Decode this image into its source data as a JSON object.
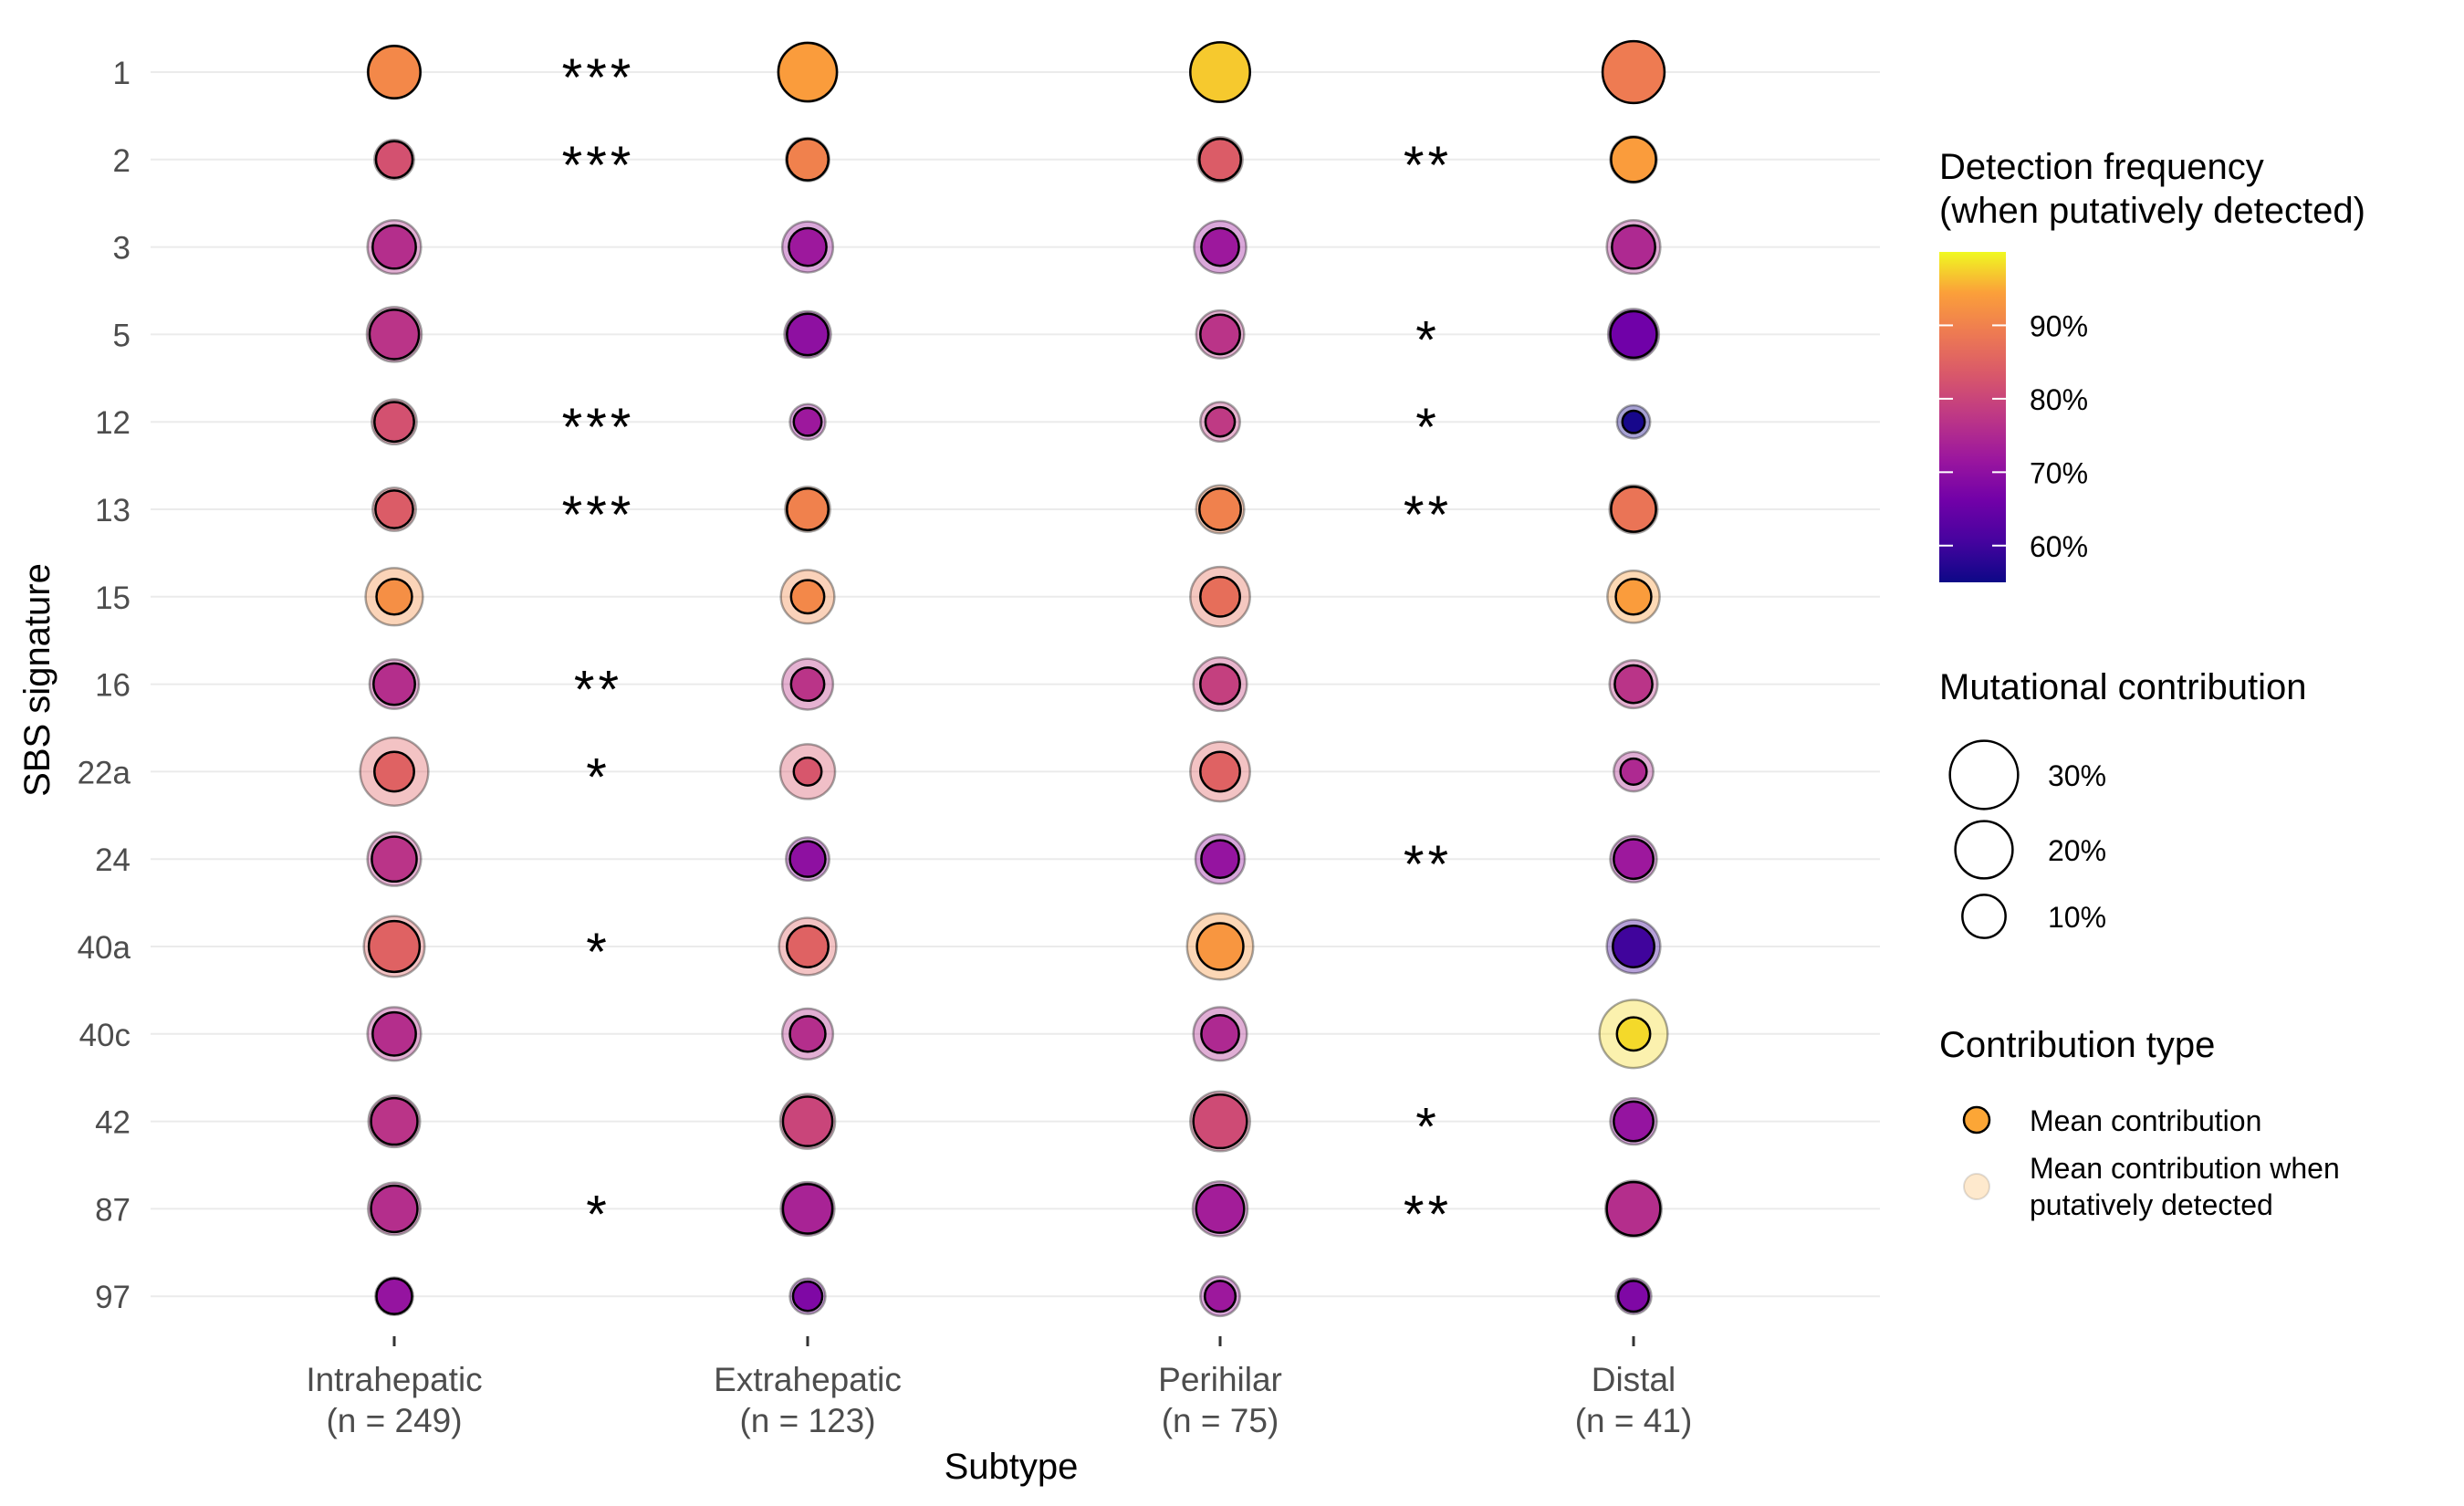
{
  "chart_data": {
    "type": "scatter",
    "xlabel": "Subtype",
    "ylabel": "SBS signature",
    "grid": true,
    "legend_position": "right",
    "categories": [
      "Intrahepatic\n(n = 249)",
      "Extrahepatic\n(n = 123)",
      "Perihilar\n(n = 75)",
      "Distal\n(n = 41)"
    ],
    "signatures": [
      "1",
      "2",
      "3",
      "5",
      "12",
      "13",
      "15",
      "16",
      "22a",
      "24",
      "40a",
      "40c",
      "42",
      "87",
      "97"
    ],
    "series": [
      {
        "name": "Intrahepatic",
        "rows": [
          {
            "sig": "1",
            "mean": 16.0,
            "detected": 16.5,
            "freq": 91
          },
          {
            "sig": "2",
            "mean": 6.5,
            "detected": 8.0,
            "freq": 82
          },
          {
            "sig": "3",
            "mean": 10.0,
            "detected": 17.0,
            "freq": 76
          },
          {
            "sig": "5",
            "mean": 14.0,
            "detected": 18.0,
            "freq": 77
          },
          {
            "sig": "12",
            "mean": 8.0,
            "detected": 11.0,
            "freq": 82
          },
          {
            "sig": "13",
            "mean": 7.0,
            "detected": 10.0,
            "freq": 84
          },
          {
            "sig": "15",
            "mean": 6.0,
            "detected": 20.0,
            "freq": 92
          },
          {
            "sig": "16",
            "mean": 9.0,
            "detected": 14.0,
            "freq": 76
          },
          {
            "sig": "22a",
            "mean": 8.0,
            "detected": 30.0,
            "freq": 85
          },
          {
            "sig": "24",
            "mean": 11.0,
            "detected": 17.0,
            "freq": 77
          },
          {
            "sig": "40a",
            "mean": 15.0,
            "detected": 23.0,
            "freq": 85
          },
          {
            "sig": "40c",
            "mean": 10.0,
            "detected": 17.0,
            "freq": 76
          },
          {
            "sig": "42",
            "mean": 12.0,
            "detected": 15.5,
            "freq": 77
          },
          {
            "sig": "87",
            "mean": 12.0,
            "detected": 16.0,
            "freq": 76
          },
          {
            "sig": "97",
            "mean": 6.0,
            "detected": 7.0,
            "freq": 71
          }
        ]
      },
      {
        "name": "Extrahepatic",
        "rows": [
          {
            "sig": "1",
            "mean": 21.0,
            "detected": 21.5,
            "freq": 94
          },
          {
            "sig": "2",
            "mean": 9.0,
            "detected": 10.0,
            "freq": 90
          },
          {
            "sig": "3",
            "mean": 7.0,
            "detected": 15.0,
            "freq": 72
          },
          {
            "sig": "5",
            "mean": 9.0,
            "detected": 12.0,
            "freq": 70
          },
          {
            "sig": "12",
            "mean": 3.0,
            "detected": 6.0,
            "freq": 72
          },
          {
            "sig": "13",
            "mean": 9.0,
            "detected": 11.0,
            "freq": 90
          },
          {
            "sig": "15",
            "mean": 5.0,
            "detected": 17.0,
            "freq": 91
          },
          {
            "sig": "16",
            "mean": 5.0,
            "detected": 15.0,
            "freq": 77
          },
          {
            "sig": "22a",
            "mean": 3.0,
            "detected": 18.0,
            "freq": 83
          },
          {
            "sig": "24",
            "mean": 6.0,
            "detected": 10.0,
            "freq": 70
          },
          {
            "sig": "40a",
            "mean": 9.0,
            "detected": 20.0,
            "freq": 85
          },
          {
            "sig": "40c",
            "mean": 6.0,
            "detected": 15.0,
            "freq": 76
          },
          {
            "sig": "42",
            "mean": 14.0,
            "detected": 18.0,
            "freq": 80
          },
          {
            "sig": "87",
            "mean": 14.0,
            "detected": 17.0,
            "freq": 74
          },
          {
            "sig": "97",
            "mean": 3.5,
            "detected": 6.0,
            "freq": 68
          }
        ]
      },
      {
        "name": "Perihilar",
        "rows": [
          {
            "sig": "1",
            "mean": 22.0,
            "detected": 22.0,
            "freq": 97
          },
          {
            "sig": "2",
            "mean": 9.0,
            "detected": 11.0,
            "freq": 84
          },
          {
            "sig": "3",
            "mean": 7.0,
            "detected": 16.0,
            "freq": 72
          },
          {
            "sig": "5",
            "mean": 8.0,
            "detected": 13.0,
            "freq": 77
          },
          {
            "sig": "12",
            "mean": 3.5,
            "detected": 8.0,
            "freq": 78
          },
          {
            "sig": "13",
            "mean": 9.0,
            "detected": 13.0,
            "freq": 90
          },
          {
            "sig": "15",
            "mean": 8.0,
            "detected": 22.0,
            "freq": 87
          },
          {
            "sig": "16",
            "mean": 8.0,
            "detected": 17.0,
            "freq": 79
          },
          {
            "sig": "22a",
            "mean": 8.0,
            "detected": 22.0,
            "freq": 85
          },
          {
            "sig": "24",
            "mean": 7.0,
            "detected": 14.0,
            "freq": 71
          },
          {
            "sig": "40a",
            "mean": 12.0,
            "detected": 28.0,
            "freq": 93
          },
          {
            "sig": "40c",
            "mean": 7.0,
            "detected": 17.0,
            "freq": 75
          },
          {
            "sig": "42",
            "mean": 17.0,
            "detected": 22.0,
            "freq": 81
          },
          {
            "sig": "87",
            "mean": 13.0,
            "detected": 18.0,
            "freq": 73
          },
          {
            "sig": "97",
            "mean": 4.0,
            "detected": 8.0,
            "freq": 72
          }
        ]
      },
      {
        "name": "Distal",
        "rows": [
          {
            "sig": "1",
            "mean": 24.0,
            "detected": 24.0,
            "freq": 89
          },
          {
            "sig": "2",
            "mean": 11.0,
            "detected": 12.0,
            "freq": 94
          },
          {
            "sig": "3",
            "mean": 10.0,
            "detected": 17.0,
            "freq": 75
          },
          {
            "sig": "5",
            "mean": 12.0,
            "detected": 15.0,
            "freq": 66
          },
          {
            "sig": "12",
            "mean": 1.5,
            "detected": 5.0,
            "freq": 56
          },
          {
            "sig": "13",
            "mean": 11.0,
            "detected": 13.0,
            "freq": 88
          },
          {
            "sig": "15",
            "mean": 6.0,
            "detected": 16.0,
            "freq": 94
          },
          {
            "sig": "16",
            "mean": 7.0,
            "detected": 13.0,
            "freq": 77
          },
          {
            "sig": "22a",
            "mean": 2.5,
            "detected": 8.0,
            "freq": 75
          },
          {
            "sig": "24",
            "mean": 8.0,
            "detected": 12.0,
            "freq": 72
          },
          {
            "sig": "40a",
            "mean": 9.0,
            "detected": 17.0,
            "freq": 60
          },
          {
            "sig": "40c",
            "mean": 5.0,
            "detected": 30.0,
            "freq": 98
          },
          {
            "sig": "42",
            "mean": 8.0,
            "detected": 12.0,
            "freq": 71
          },
          {
            "sig": "87",
            "mean": 17.0,
            "detected": 19.0,
            "freq": 76
          },
          {
            "sig": "97",
            "mean": 4.0,
            "detected": 6.0,
            "freq": 68
          }
        ]
      }
    ],
    "significance": {
      "intrahepatic_vs_extrahepatic": {
        "1": "***",
        "2": "***",
        "12": "***",
        "13": "***",
        "16": "**",
        "22a": "*",
        "40a": "*",
        "87": "*"
      },
      "perihilar_vs_distal": {
        "2": "**",
        "5": "*",
        "12": "*",
        "13": "**",
        "24": "**",
        "42": "*",
        "87": "**"
      }
    },
    "legend": {
      "color": {
        "title": "Detection frequency\n(when putatively detected)",
        "ticks": [
          "90%",
          "80%",
          "70%",
          "60%"
        ],
        "tick_values": [
          90,
          80,
          70,
          60
        ],
        "range": [
          55,
          100
        ],
        "scale": "plasma"
      },
      "size": {
        "title": "Mutational contribution",
        "labels": [
          "30%",
          "20%",
          "10%"
        ],
        "values": [
          30,
          20,
          10
        ]
      },
      "type": {
        "title": "Contribution type",
        "items": [
          "Mean contribution",
          "Mean contribution when\nputatively detected"
        ]
      }
    }
  }
}
